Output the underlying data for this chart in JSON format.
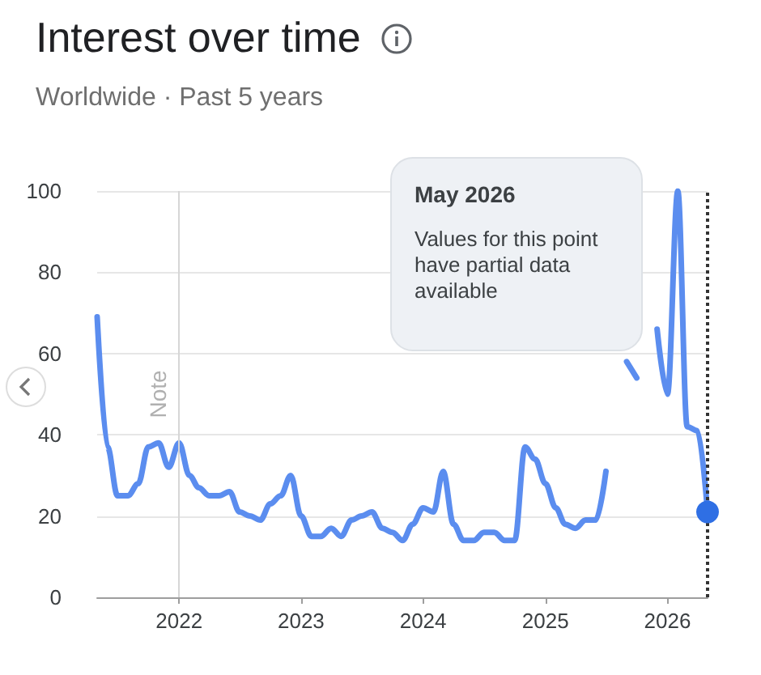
{
  "chart_data": {
    "type": "line",
    "title": "Interest over time",
    "subtitle": "Worldwide · Past 5 years",
    "x": [
      "2021-05",
      "2021-06",
      "2021-07",
      "2021-08",
      "2021-09",
      "2021-10",
      "2021-11",
      "2021-12",
      "2022-01",
      "2022-02",
      "2022-03",
      "2022-04",
      "2022-05",
      "2022-06",
      "2022-07",
      "2022-08",
      "2022-09",
      "2022-10",
      "2022-11",
      "2022-12",
      "2023-01",
      "2023-02",
      "2023-03",
      "2023-04",
      "2023-05",
      "2023-06",
      "2023-07",
      "2023-08",
      "2023-09",
      "2023-10",
      "2023-11",
      "2023-12",
      "2024-01",
      "2024-02",
      "2024-03",
      "2024-04",
      "2024-05",
      "2024-06",
      "2024-07",
      "2024-08",
      "2024-09",
      "2024-10",
      "2024-11",
      "2024-12",
      "2025-01",
      "2025-02",
      "2025-03",
      "2025-04",
      "2025-05",
      "2025-06",
      "2025-07",
      "2025-08",
      "2025-09",
      "2025-10",
      "2025-11",
      "2025-12",
      "2026-01",
      "2026-02",
      "2026-03",
      "2026-04",
      "2026-05"
    ],
    "series": [
      {
        "color": "#5b8def",
        "values": [
          69,
          37,
          25,
          25,
          28,
          37,
          38,
          32,
          38,
          30,
          27,
          25,
          25,
          26,
          21,
          20,
          19,
          23,
          25,
          30,
          20,
          15,
          15,
          17,
          15,
          19,
          20,
          21,
          17,
          16,
          14,
          18,
          22,
          21,
          31,
          18,
          14,
          14,
          16,
          16,
          14,
          14,
          37,
          34,
          28,
          22,
          18,
          17,
          19,
          19,
          31,
          null,
          58,
          54,
          null,
          66,
          50,
          100,
          42,
          41,
          21
        ]
      }
    ],
    "xlim": [
      "2021-05",
      "2026-05"
    ],
    "xticks": [
      "2022",
      "2023",
      "2024",
      "2025",
      "2026"
    ],
    "ylim": [
      0,
      100
    ],
    "yticks": [
      0,
      20,
      40,
      60,
      80,
      100
    ],
    "grid": "y",
    "marker": "none",
    "line_style": "solid",
    "ref_lines": [
      {
        "axis": "x",
        "value": "2022-01",
        "label": "Note",
        "color": "#d6d6d6",
        "line_style": "solid"
      },
      {
        "axis": "x",
        "value": "2026-05",
        "label": null,
        "color": "#333333",
        "line_style": "dotted"
      }
    ],
    "annotations": [
      "May 2026",
      "Values for this point have partial data available"
    ]
  }
}
